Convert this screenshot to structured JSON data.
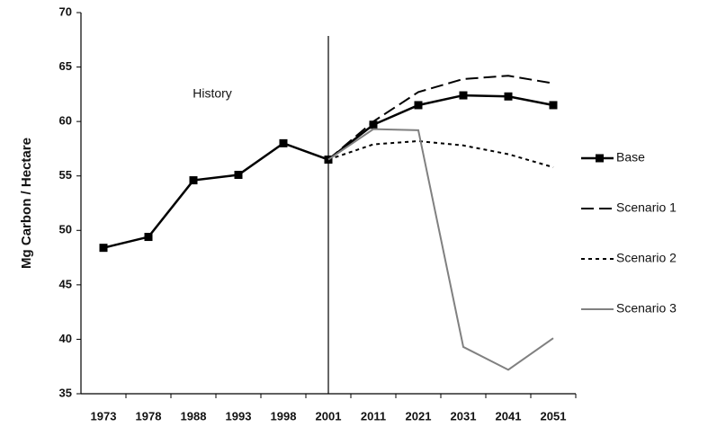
{
  "chart_data": {
    "type": "line",
    "ylabel": "Mg Carbon / Hectare",
    "annotation": "History",
    "vline_category": "2001",
    "categories": [
      "1973",
      "1978",
      "1988",
      "1993",
      "1998",
      "2001",
      "2011",
      "2021",
      "2031",
      "2041",
      "2051"
    ],
    "series": [
      {
        "name": "Base",
        "color": "#000000",
        "dash": "solid",
        "marker": "square",
        "values": [
          48.4,
          49.4,
          54.6,
          55.1,
          58.0,
          56.5,
          59.7,
          61.5,
          62.4,
          62.3,
          61.5
        ]
      },
      {
        "name": "Scenario 1",
        "color": "#000000",
        "dash": "dashed",
        "values": [
          null,
          null,
          null,
          null,
          null,
          56.5,
          60.0,
          62.7,
          63.9,
          64.2,
          63.5
        ]
      },
      {
        "name": "Scenario 2",
        "color": "#000000",
        "dash": "dotted",
        "values": [
          null,
          null,
          null,
          null,
          null,
          56.5,
          57.9,
          58.2,
          57.8,
          57.0,
          55.8
        ]
      },
      {
        "name": "Scenario 3",
        "color": "#808080",
        "dash": "solid",
        "values": [
          null,
          null,
          null,
          null,
          null,
          56.5,
          59.3,
          59.2,
          39.3,
          37.2,
          40.1
        ]
      }
    ],
    "ylim": [
      35,
      70
    ],
    "yticks": [
      35,
      40,
      45,
      50,
      55,
      60,
      65,
      70
    ],
    "grid": false,
    "legend": "right"
  }
}
